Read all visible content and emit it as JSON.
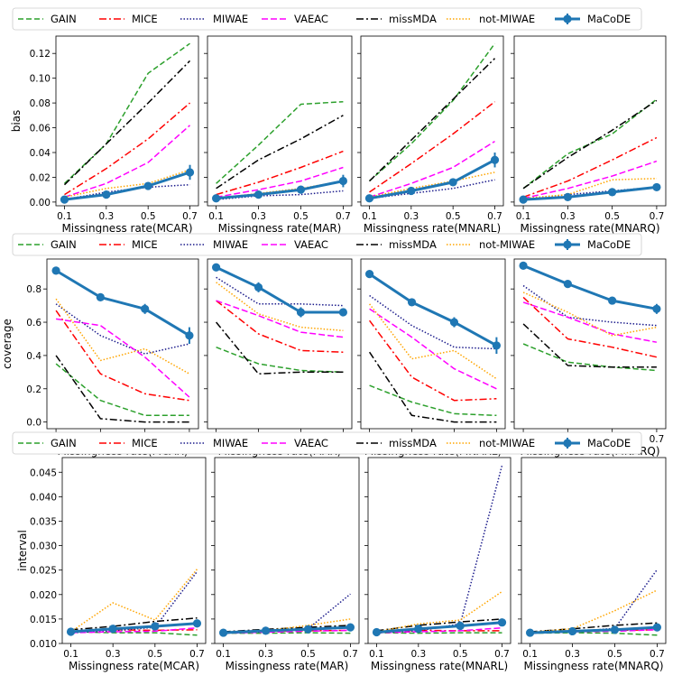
{
  "chart_data": {
    "type": "line",
    "x": [
      0.1,
      0.3,
      0.5,
      0.7
    ],
    "x_tick_labels": [
      "0.1",
      "0.3",
      "0.5",
      "0.7"
    ],
    "methods": [
      {
        "name": "GAIN",
        "color": "#2ca02c",
        "dash": "6,3",
        "width": 1.5,
        "marker": false
      },
      {
        "name": "MICE",
        "color": "#ff0000",
        "dash": "8,3,2,3",
        "width": 1.5,
        "marker": false
      },
      {
        "name": "MIWAE",
        "color": "#1c1c8c",
        "dash": "1.5,2",
        "width": 1.5,
        "marker": false
      },
      {
        "name": "VAEAC",
        "color": "#ff00ff",
        "dash": "7,3",
        "width": 1.5,
        "marker": false
      },
      {
        "name": "missMDA",
        "color": "#000000",
        "dash": "8,3,2,3",
        "width": 1.5,
        "marker": false
      },
      {
        "name": "not-MIWAE",
        "color": "#ffa500",
        "dash": "1.5,2",
        "width": 1.5,
        "marker": false
      },
      {
        "name": "MaCoDE",
        "color": "#1f77b4",
        "dash": "",
        "width": 3,
        "marker": true
      }
    ],
    "rows": [
      {
        "ylabel": "bias",
        "ylim": [
          -0.003,
          0.134
        ],
        "yticks": [
          0.0,
          0.02,
          0.04,
          0.06,
          0.08,
          0.1,
          0.12
        ],
        "ytick_labels": [
          "0.00",
          "0.02",
          "0.04",
          "0.06",
          "0.08",
          "0.10",
          "0.12"
        ],
        "panels": [
          {
            "xlabel": "Missingness rate(MCAR)",
            "series": {
              "GAIN": [
                0.015,
                0.047,
                0.104,
                0.128
              ],
              "MICE": [
                0.006,
                0.027,
                0.051,
                0.08
              ],
              "MIWAE": [
                0.002,
                0.008,
                0.012,
                0.014
              ],
              "VAEAC": [
                0.004,
                0.015,
                0.032,
                0.062
              ],
              "missMDA": [
                0.014,
                0.047,
                0.08,
                0.114
              ],
              "not-MIWAE": [
                0.004,
                0.011,
                0.015,
                0.026
              ],
              "MaCoDE": [
                0.002,
                0.006,
                0.013,
                0.024
              ]
            },
            "errors": [
              0.001,
              0.002,
              0.003,
              0.006
            ]
          },
          {
            "xlabel": "Missingness rate(MAR)",
            "series": {
              "GAIN": [
                0.015,
                0.046,
                0.079,
                0.081
              ],
              "MICE": [
                0.006,
                0.016,
                0.028,
                0.041
              ],
              "MIWAE": [
                0.002,
                0.005,
                0.006,
                0.009
              ],
              "VAEAC": [
                0.004,
                0.01,
                0.017,
                0.028
              ],
              "missMDA": [
                0.011,
                0.034,
                0.051,
                0.07
              ],
              "not-MIWAE": [
                0.003,
                0.007,
                0.011,
                0.017
              ],
              "MaCoDE": [
                0.003,
                0.006,
                0.01,
                0.017
              ]
            },
            "errors": [
              0.001,
              0.002,
              0.002,
              0.005
            ]
          },
          {
            "xlabel": "Missingness rate(MNARL)",
            "series": {
              "GAIN": [
                0.017,
                0.047,
                0.082,
                0.128
              ],
              "MICE": [
                0.008,
                0.031,
                0.055,
                0.081
              ],
              "MIWAE": [
                0.003,
                0.007,
                0.011,
                0.018
              ],
              "VAEAC": [
                0.004,
                0.015,
                0.028,
                0.049
              ],
              "missMDA": [
                0.017,
                0.05,
                0.083,
                0.116
              ],
              "not-MIWAE": [
                0.004,
                0.011,
                0.017,
                0.024
              ],
              "MaCoDE": [
                0.003,
                0.009,
                0.016,
                0.034
              ]
            },
            "errors": [
              0.001,
              0.002,
              0.003,
              0.006
            ]
          },
          {
            "xlabel": "Missingness rate(MNARQ)",
            "series": {
              "GAIN": [
                0.011,
                0.039,
                0.055,
                0.083
              ],
              "MICE": [
                0.004,
                0.017,
                0.034,
                0.052
              ],
              "MIWAE": [
                0.002,
                0.006,
                0.009,
                0.012
              ],
              "VAEAC": [
                0.003,
                0.011,
                0.021,
                0.033
              ],
              "missMDA": [
                0.011,
                0.036,
                0.058,
                0.082
              ],
              "not-MIWAE": [
                0.003,
                0.006,
                0.018,
                0.019
              ],
              "MaCoDE": [
                0.002,
                0.004,
                0.008,
                0.012
              ]
            },
            "errors": [
              0.001,
              0.001,
              0.001,
              0.002
            ]
          }
        ]
      },
      {
        "ylabel": "coverage",
        "ylim": [
          -0.04,
          0.98
        ],
        "yticks": [
          0.0,
          0.2,
          0.4,
          0.6,
          0.8
        ],
        "ytick_labels": [
          "0.0",
          "0.2",
          "0.4",
          "0.6",
          "0.8"
        ],
        "panels": [
          {
            "xlabel": "Missingness rate(MCAR)",
            "series": {
              "GAIN": [
                0.35,
                0.13,
                0.04,
                0.04
              ],
              "MICE": [
                0.67,
                0.29,
                0.17,
                0.13
              ],
              "MIWAE": [
                0.71,
                0.52,
                0.41,
                0.47
              ],
              "VAEAC": [
                0.62,
                0.58,
                0.39,
                0.15
              ],
              "missMDA": [
                0.4,
                0.02,
                0.0,
                0.0
              ],
              "not-MIWAE": [
                0.74,
                0.37,
                0.44,
                0.29
              ],
              "MaCoDE": [
                0.91,
                0.75,
                0.68,
                0.52
              ]
            },
            "errors": [
              0.01,
              0.02,
              0.03,
              0.05
            ]
          },
          {
            "xlabel": "Missingness rate(MAR)",
            "series": {
              "GAIN": [
                0.45,
                0.35,
                0.31,
                0.3
              ],
              "MICE": [
                0.73,
                0.53,
                0.43,
                0.42
              ],
              "MIWAE": [
                0.87,
                0.71,
                0.71,
                0.7
              ],
              "VAEAC": [
                0.73,
                0.64,
                0.54,
                0.51
              ],
              "missMDA": [
                0.6,
                0.29,
                0.3,
                0.3
              ],
              "not-MIWAE": [
                0.84,
                0.65,
                0.57,
                0.55
              ],
              "MaCoDE": [
                0.93,
                0.81,
                0.66,
                0.66
              ]
            },
            "errors": [
              0.01,
              0.03,
              0.03,
              0.02
            ]
          },
          {
            "xlabel": "Missingness rate(MNARL)",
            "series": {
              "GAIN": [
                0.22,
                0.12,
                0.05,
                0.04
              ],
              "MICE": [
                0.61,
                0.27,
                0.13,
                0.14
              ],
              "MIWAE": [
                0.76,
                0.58,
                0.45,
                0.44
              ],
              "VAEAC": [
                0.68,
                0.51,
                0.32,
                0.2
              ],
              "missMDA": [
                0.42,
                0.04,
                0.0,
                0.0
              ],
              "not-MIWAE": [
                0.71,
                0.38,
                0.43,
                0.26
              ],
              "MaCoDE": [
                0.89,
                0.72,
                0.6,
                0.46
              ]
            },
            "errors": [
              0.01,
              0.02,
              0.03,
              0.05
            ]
          },
          {
            "xlabel": "Missingness rate(MNARQ)",
            "series": {
              "GAIN": [
                0.47,
                0.36,
                0.33,
                0.31
              ],
              "MICE": [
                0.75,
                0.5,
                0.45,
                0.39
              ],
              "MIWAE": [
                0.82,
                0.63,
                0.6,
                0.58
              ],
              "VAEAC": [
                0.72,
                0.63,
                0.53,
                0.48
              ],
              "missMDA": [
                0.59,
                0.34,
                0.33,
                0.33
              ],
              "not-MIWAE": [
                0.78,
                0.66,
                0.52,
                0.57
              ],
              "MaCoDE": [
                0.94,
                0.83,
                0.73,
                0.68
              ]
            },
            "errors": [
              0.01,
              0.02,
              0.02,
              0.03
            ]
          }
        ]
      },
      {
        "ylabel": "interval",
        "ylim": [
          0.01,
          0.048
        ],
        "yticks": [
          0.01,
          0.015,
          0.02,
          0.025,
          0.03,
          0.035,
          0.04,
          0.045
        ],
        "ytick_labels": [
          "0.010",
          "0.015",
          "0.020",
          "0.025",
          "0.030",
          "0.035",
          "0.040",
          "0.045"
        ],
        "panels": [
          {
            "xlabel": "Missingness rate(MCAR)",
            "series": {
              "GAIN": [
                0.0124,
                0.0122,
                0.0122,
                0.0117
              ],
              "MICE": [
                0.0125,
                0.0128,
                0.0127,
                0.0128
              ],
              "MIWAE": [
                0.0122,
                0.0126,
                0.0133,
                0.0247
              ],
              "VAEAC": [
                0.0122,
                0.0124,
                0.0125,
                0.0132
              ],
              "missMDA": [
                0.0128,
                0.0135,
                0.0145,
                0.0152
              ],
              "not-MIWAE": [
                0.0124,
                0.0183,
                0.0148,
                0.0252
              ],
              "MaCoDE": [
                0.0124,
                0.013,
                0.0135,
                0.0141
              ]
            },
            "errors": [
              0.0002,
              0.0003,
              0.0003,
              0.0004
            ]
          },
          {
            "xlabel": "Missingness rate(MAR)",
            "series": {
              "GAIN": [
                0.0121,
                0.0121,
                0.0122,
                0.0121
              ],
              "MICE": [
                0.0123,
                0.0125,
                0.0126,
                0.0127
              ],
              "MIWAE": [
                0.0121,
                0.0124,
                0.013,
                0.0201
              ],
              "VAEAC": [
                0.0121,
                0.0123,
                0.0125,
                0.0127
              ],
              "missMDA": [
                0.0124,
                0.0129,
                0.0133,
                0.0137
              ],
              "not-MIWAE": [
                0.0123,
                0.0126,
                0.0137,
                0.015
              ],
              "MaCoDE": [
                0.0122,
                0.0126,
                0.0129,
                0.0133
              ]
            },
            "errors": [
              0.0002,
              0.0002,
              0.0003,
              0.0003
            ]
          },
          {
            "xlabel": "Missingness rate(MNARL)",
            "series": {
              "GAIN": [
                0.0122,
                0.0121,
                0.0122,
                0.0122
              ],
              "MICE": [
                0.0124,
                0.0127,
                0.0126,
                0.0126
              ],
              "MIWAE": [
                0.0122,
                0.0126,
                0.014,
                0.0464
              ],
              "VAEAC": [
                0.0122,
                0.0124,
                0.0126,
                0.0132
              ],
              "missMDA": [
                0.0126,
                0.0137,
                0.0144,
                0.015
              ],
              "not-MIWAE": [
                0.0124,
                0.014,
                0.0148,
                0.0206
              ],
              "MaCoDE": [
                0.0123,
                0.013,
                0.0136,
                0.0143
              ]
            },
            "errors": [
              0.0002,
              0.0003,
              0.0003,
              0.0004
            ]
          },
          {
            "xlabel": "Missingness rate(MNARQ)",
            "series": {
              "GAIN": [
                0.0121,
                0.0122,
                0.0121,
                0.0117
              ],
              "MICE": [
                0.0123,
                0.0126,
                0.0127,
                0.0128
              ],
              "MIWAE": [
                0.0121,
                0.0124,
                0.0131,
                0.0251
              ],
              "VAEAC": [
                0.0121,
                0.0124,
                0.0125,
                0.0128
              ],
              "missMDA": [
                0.0124,
                0.013,
                0.0137,
                0.0142
              ],
              "not-MIWAE": [
                0.0123,
                0.013,
                0.0167,
                0.0209
              ],
              "MaCoDE": [
                0.0122,
                0.0125,
                0.0128,
                0.0133
              ]
            },
            "errors": [
              0.0002,
              0.0002,
              0.0003,
              0.0003
            ]
          }
        ]
      }
    ]
  }
}
